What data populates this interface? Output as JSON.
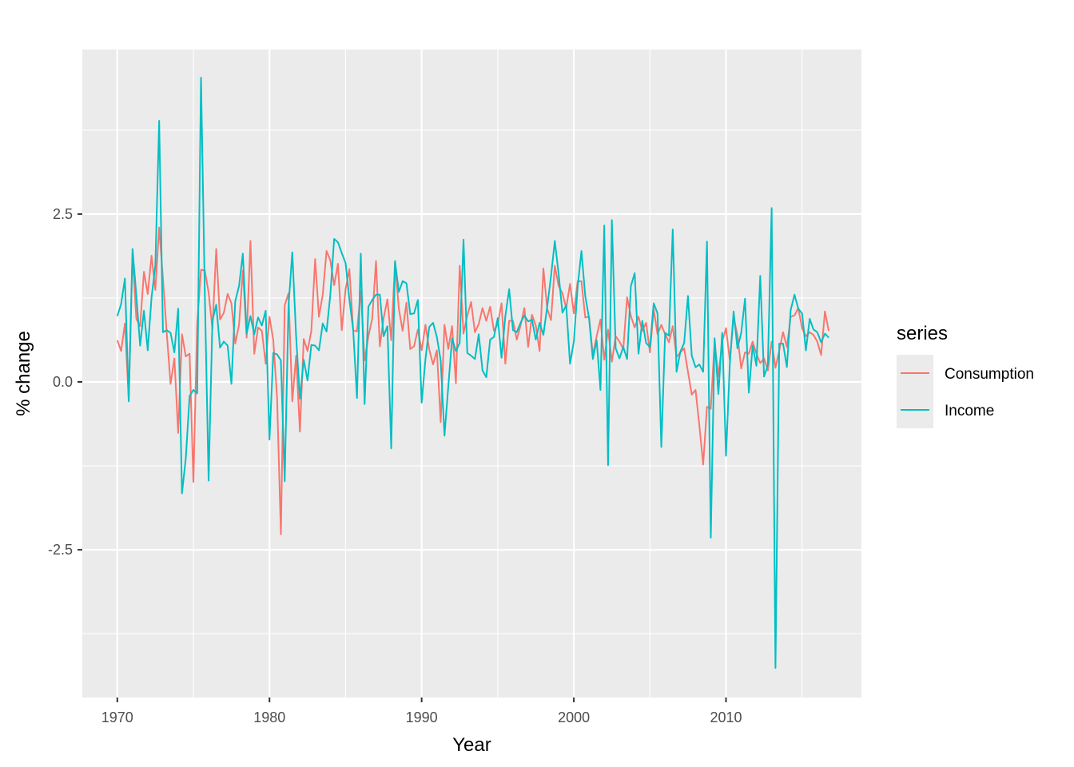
{
  "chart_data": {
    "type": "line",
    "xlabel": "Year",
    "ylabel": "% change",
    "xlim": [
      1967.7,
      2018.9
    ],
    "ylim": [
      -4.7,
      4.95
    ],
    "x_ticks": [
      1970,
      1980,
      1990,
      2000,
      2010
    ],
    "x_tick_labels": [
      "1970",
      "1980",
      "1990",
      "2000",
      "2010"
    ],
    "y_ticks": [
      -2.5,
      0,
      2.5
    ],
    "y_tick_labels": [
      "-2.5",
      "0.0",
      "2.5"
    ],
    "grid": true,
    "legend": {
      "title": "series",
      "position": "right"
    },
    "x_start": 1970.0,
    "x_step": 0.25,
    "series": [
      {
        "name": "Consumption",
        "color": "#F8766D",
        "values": [
          0.62,
          0.46,
          0.87,
          -0.27,
          1.9,
          0.94,
          0.83,
          1.64,
          1.31,
          1.88,
          1.37,
          2.3,
          1.54,
          0.72,
          -0.03,
          0.35,
          -0.76,
          0.71,
          0.38,
          0.42,
          -1.49,
          0.87,
          1.67,
          1.66,
          1.33,
          0.79,
          1.98,
          0.93,
          1.03,
          1.31,
          1.17,
          0.57,
          0.85,
          1.66,
          0.66,
          2.1,
          0.42,
          0.81,
          0.76,
          0.27,
          0.97,
          0.62,
          -0.24,
          -2.27,
          1.14,
          1.32,
          -0.29,
          0.39,
          -0.74,
          0.64,
          0.46,
          0.76,
          1.83,
          0.97,
          1.3,
          1.95,
          1.81,
          1.44,
          1.76,
          0.77,
          1.38,
          1.68,
          0.77,
          0.75,
          1.36,
          0.32,
          0.68,
          0.94,
          1.8,
          0.53,
          0.95,
          1.23,
          0.62,
          1.79,
          1.09,
          0.76,
          1.18,
          0.49,
          0.53,
          0.78,
          0.47,
          0.85,
          0.48,
          0.26,
          0.47,
          -0.6,
          0.85,
          0.49,
          0.83,
          -0.02,
          1.73,
          0.72,
          0.99,
          1.19,
          0.74,
          0.86,
          1.1,
          0.91,
          1.12,
          0.76,
          0.86,
          1.17,
          0.27,
          0.91,
          0.91,
          0.63,
          0.84,
          1.1,
          0.52,
          1.0,
          0.84,
          0.46,
          1.69,
          1.09,
          0.92,
          1.73,
          1.43,
          1.32,
          1.1,
          1.46,
          1.02,
          1.5,
          1.5,
          0.96,
          0.97,
          0.4,
          0.68,
          0.93,
          0.33,
          0.78,
          0.3,
          0.68,
          0.6,
          0.49,
          1.26,
          0.98,
          0.81,
          0.97,
          0.76,
          0.88,
          0.44,
          1.08,
          0.71,
          0.85,
          0.71,
          0.59,
          0.83,
          0.37,
          0.44,
          0.5,
          0.15,
          -0.19,
          -0.12,
          -0.65,
          -1.23,
          -0.37,
          -0.4,
          0.6,
          0.08,
          0.6,
          0.8,
          0.32,
          0.96,
          0.7,
          0.2,
          0.44,
          0.42,
          0.6,
          0.42,
          0.28,
          0.35,
          0.17,
          0.6,
          0.21,
          0.47,
          0.74,
          0.52,
          0.97,
          0.99,
          1.1,
          0.8,
          0.68,
          0.74,
          0.7,
          0.6,
          0.4,
          1.05,
          0.76
        ]
      },
      {
        "name": "Income",
        "color": "#00BFC4",
        "values": [
          0.98,
          1.16,
          1.54,
          -0.29,
          1.98,
          1.29,
          0.54,
          1.06,
          0.47,
          1.26,
          1.73,
          3.89,
          0.74,
          0.77,
          0.73,
          0.44,
          1.09,
          -1.66,
          -1.14,
          -0.21,
          -0.12,
          -0.17,
          4.53,
          1.32,
          -1.47,
          0.91,
          1.15,
          0.51,
          0.6,
          0.54,
          -0.03,
          1.2,
          1.43,
          1.91,
          0.72,
          0.98,
          0.71,
          0.96,
          0.84,
          1.06,
          -0.86,
          0.43,
          0.41,
          0.32,
          -1.48,
          1.13,
          1.93,
          0.68,
          -0.25,
          0.33,
          0.02,
          0.55,
          0.54,
          0.47,
          0.87,
          0.75,
          1.3,
          2.13,
          2.08,
          1.92,
          1.77,
          1.23,
          0.78,
          -0.24,
          1.91,
          -0.33,
          1.12,
          1.22,
          1.3,
          1.3,
          0.68,
          0.83,
          -0.99,
          1.8,
          1.34,
          1.5,
          1.47,
          1.01,
          1.02,
          1.22,
          -0.31,
          0.34,
          0.82,
          0.88,
          0.67,
          0.32,
          -0.8,
          -0.07,
          0.65,
          0.46,
          0.58,
          2.12,
          0.43,
          0.39,
          0.34,
          0.71,
          0.17,
          0.07,
          0.63,
          0.67,
          0.95,
          0.36,
          0.98,
          1.38,
          0.77,
          0.74,
          0.88,
          0.99,
          0.9,
          0.93,
          0.63,
          0.88,
          0.7,
          1.12,
          1.57,
          2.1,
          1.61,
          1.03,
          1.14,
          0.27,
          0.6,
          1.41,
          1.95,
          1.28,
          0.95,
          0.34,
          0.62,
          -0.12,
          2.33,
          -1.24,
          2.41,
          0.5,
          0.35,
          0.52,
          0.34,
          1.43,
          1.62,
          0.42,
          0.91,
          0.58,
          0.52,
          1.17,
          1.02,
          -0.97,
          0.73,
          0.69,
          2.27,
          0.15,
          0.45,
          0.58,
          1.28,
          0.39,
          0.22,
          0.26,
          0.15,
          2.09,
          -2.32,
          0.65,
          -0.18,
          0.73,
          -1.1,
          0.26,
          1.05,
          0.5,
          0.73,
          1.24,
          -0.16,
          0.54,
          0.24,
          1.58,
          0.08,
          0.25,
          2.59,
          -4.26,
          0.57,
          0.57,
          0.22,
          1.07,
          1.3,
          1.09,
          1.02,
          0.47,
          0.94,
          0.78,
          0.74,
          0.59,
          0.72,
          0.66
        ]
      }
    ]
  }
}
